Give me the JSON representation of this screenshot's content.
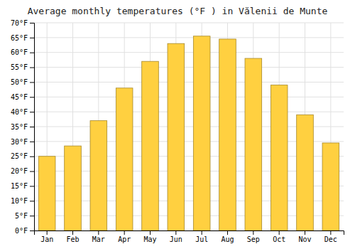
{
  "chart_data": {
    "type": "bar",
    "title": "Average monthly temperatures (°F ) in Vălenii de Munte",
    "categories": [
      "Jan",
      "Feb",
      "Mar",
      "Apr",
      "May",
      "Jun",
      "Jul",
      "Aug",
      "Sep",
      "Oct",
      "Nov",
      "Dec"
    ],
    "values": [
      25,
      28.5,
      37,
      48,
      57,
      63,
      65.5,
      64.5,
      58,
      49,
      39,
      29.5
    ],
    "color": "#FFD040",
    "ylim": [
      0,
      70
    ],
    "yticks": [
      {
        "value": 0,
        "label": "0°F"
      },
      {
        "value": 5,
        "label": "5°F"
      },
      {
        "value": 10,
        "label": "10°F"
      },
      {
        "value": 15,
        "label": "15°F"
      },
      {
        "value": 20,
        "label": "20°F"
      },
      {
        "value": 25,
        "label": "25°F"
      },
      {
        "value": 30,
        "label": "30°F"
      },
      {
        "value": 35,
        "label": "35°F"
      },
      {
        "value": 40,
        "label": "40°F"
      },
      {
        "value": 45,
        "label": "45°F"
      },
      {
        "value": 50,
        "label": "50°F"
      },
      {
        "value": 55,
        "label": "55°F"
      },
      {
        "value": 60,
        "label": "60°F"
      },
      {
        "value": 65,
        "label": "65°F"
      },
      {
        "value": 70,
        "label": "70°F"
      }
    ],
    "grid": true
  }
}
